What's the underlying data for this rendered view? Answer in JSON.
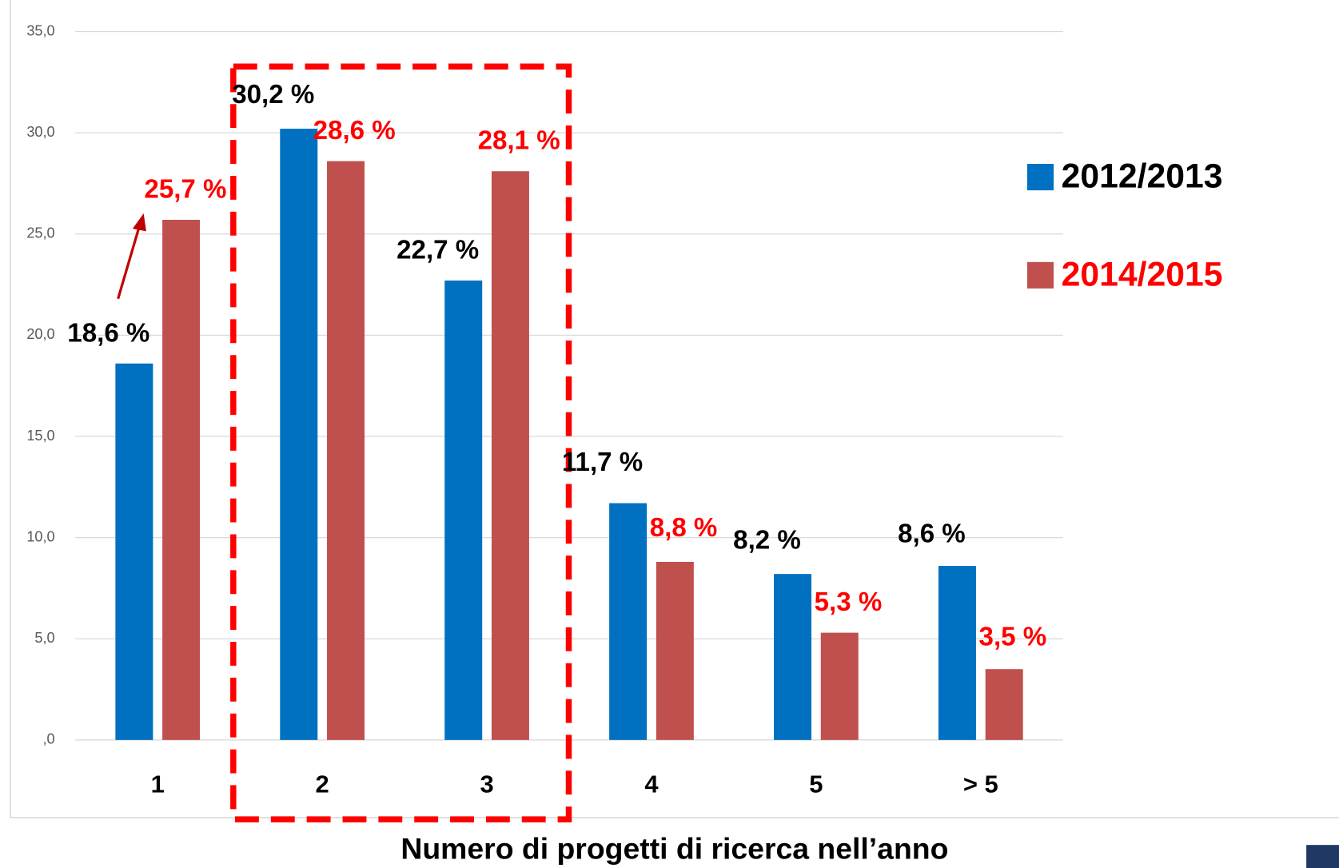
{
  "chart_data": {
    "type": "bar",
    "x_label": "Numero di progetti di ricerca nell’anno",
    "categories": [
      "1",
      "2",
      "3",
      "4",
      "5",
      "> 5"
    ],
    "series": [
      {
        "name": "2012/2013",
        "color": "#0070c0",
        "label_color": "#000000",
        "values": [
          18.6,
          30.2,
          22.7,
          11.7,
          8.2,
          8.6
        ],
        "value_labels": [
          "18,6 %",
          "30,2 %",
          "22,7 %",
          "11,7 %",
          "8,2 %",
          "8,6 %"
        ]
      },
      {
        "name": "2014/2015",
        "color": "#c0504d",
        "label_color": "#ff0000",
        "values": [
          25.7,
          28.6,
          28.1,
          8.8,
          5.3,
          3.5
        ],
        "value_labels": [
          "25,7 %",
          "28,6 %",
          "28,1 %",
          "8,8 %",
          "5,3 %",
          "3,5 %"
        ]
      }
    ],
    "ylim": [
      0,
      35
    ],
    "yticks": [
      {
        "value": 0,
        "label": ",0"
      },
      {
        "value": 5,
        "label": "5,0"
      },
      {
        "value": 10,
        "label": "10,0"
      },
      {
        "value": 15,
        "label": "15,0"
      },
      {
        "value": 20,
        "label": "20,0"
      },
      {
        "value": 25,
        "label": "25,0"
      },
      {
        "value": 30,
        "label": "30,0"
      },
      {
        "value": 35,
        "label": "35,0"
      }
    ],
    "grid": true
  }
}
